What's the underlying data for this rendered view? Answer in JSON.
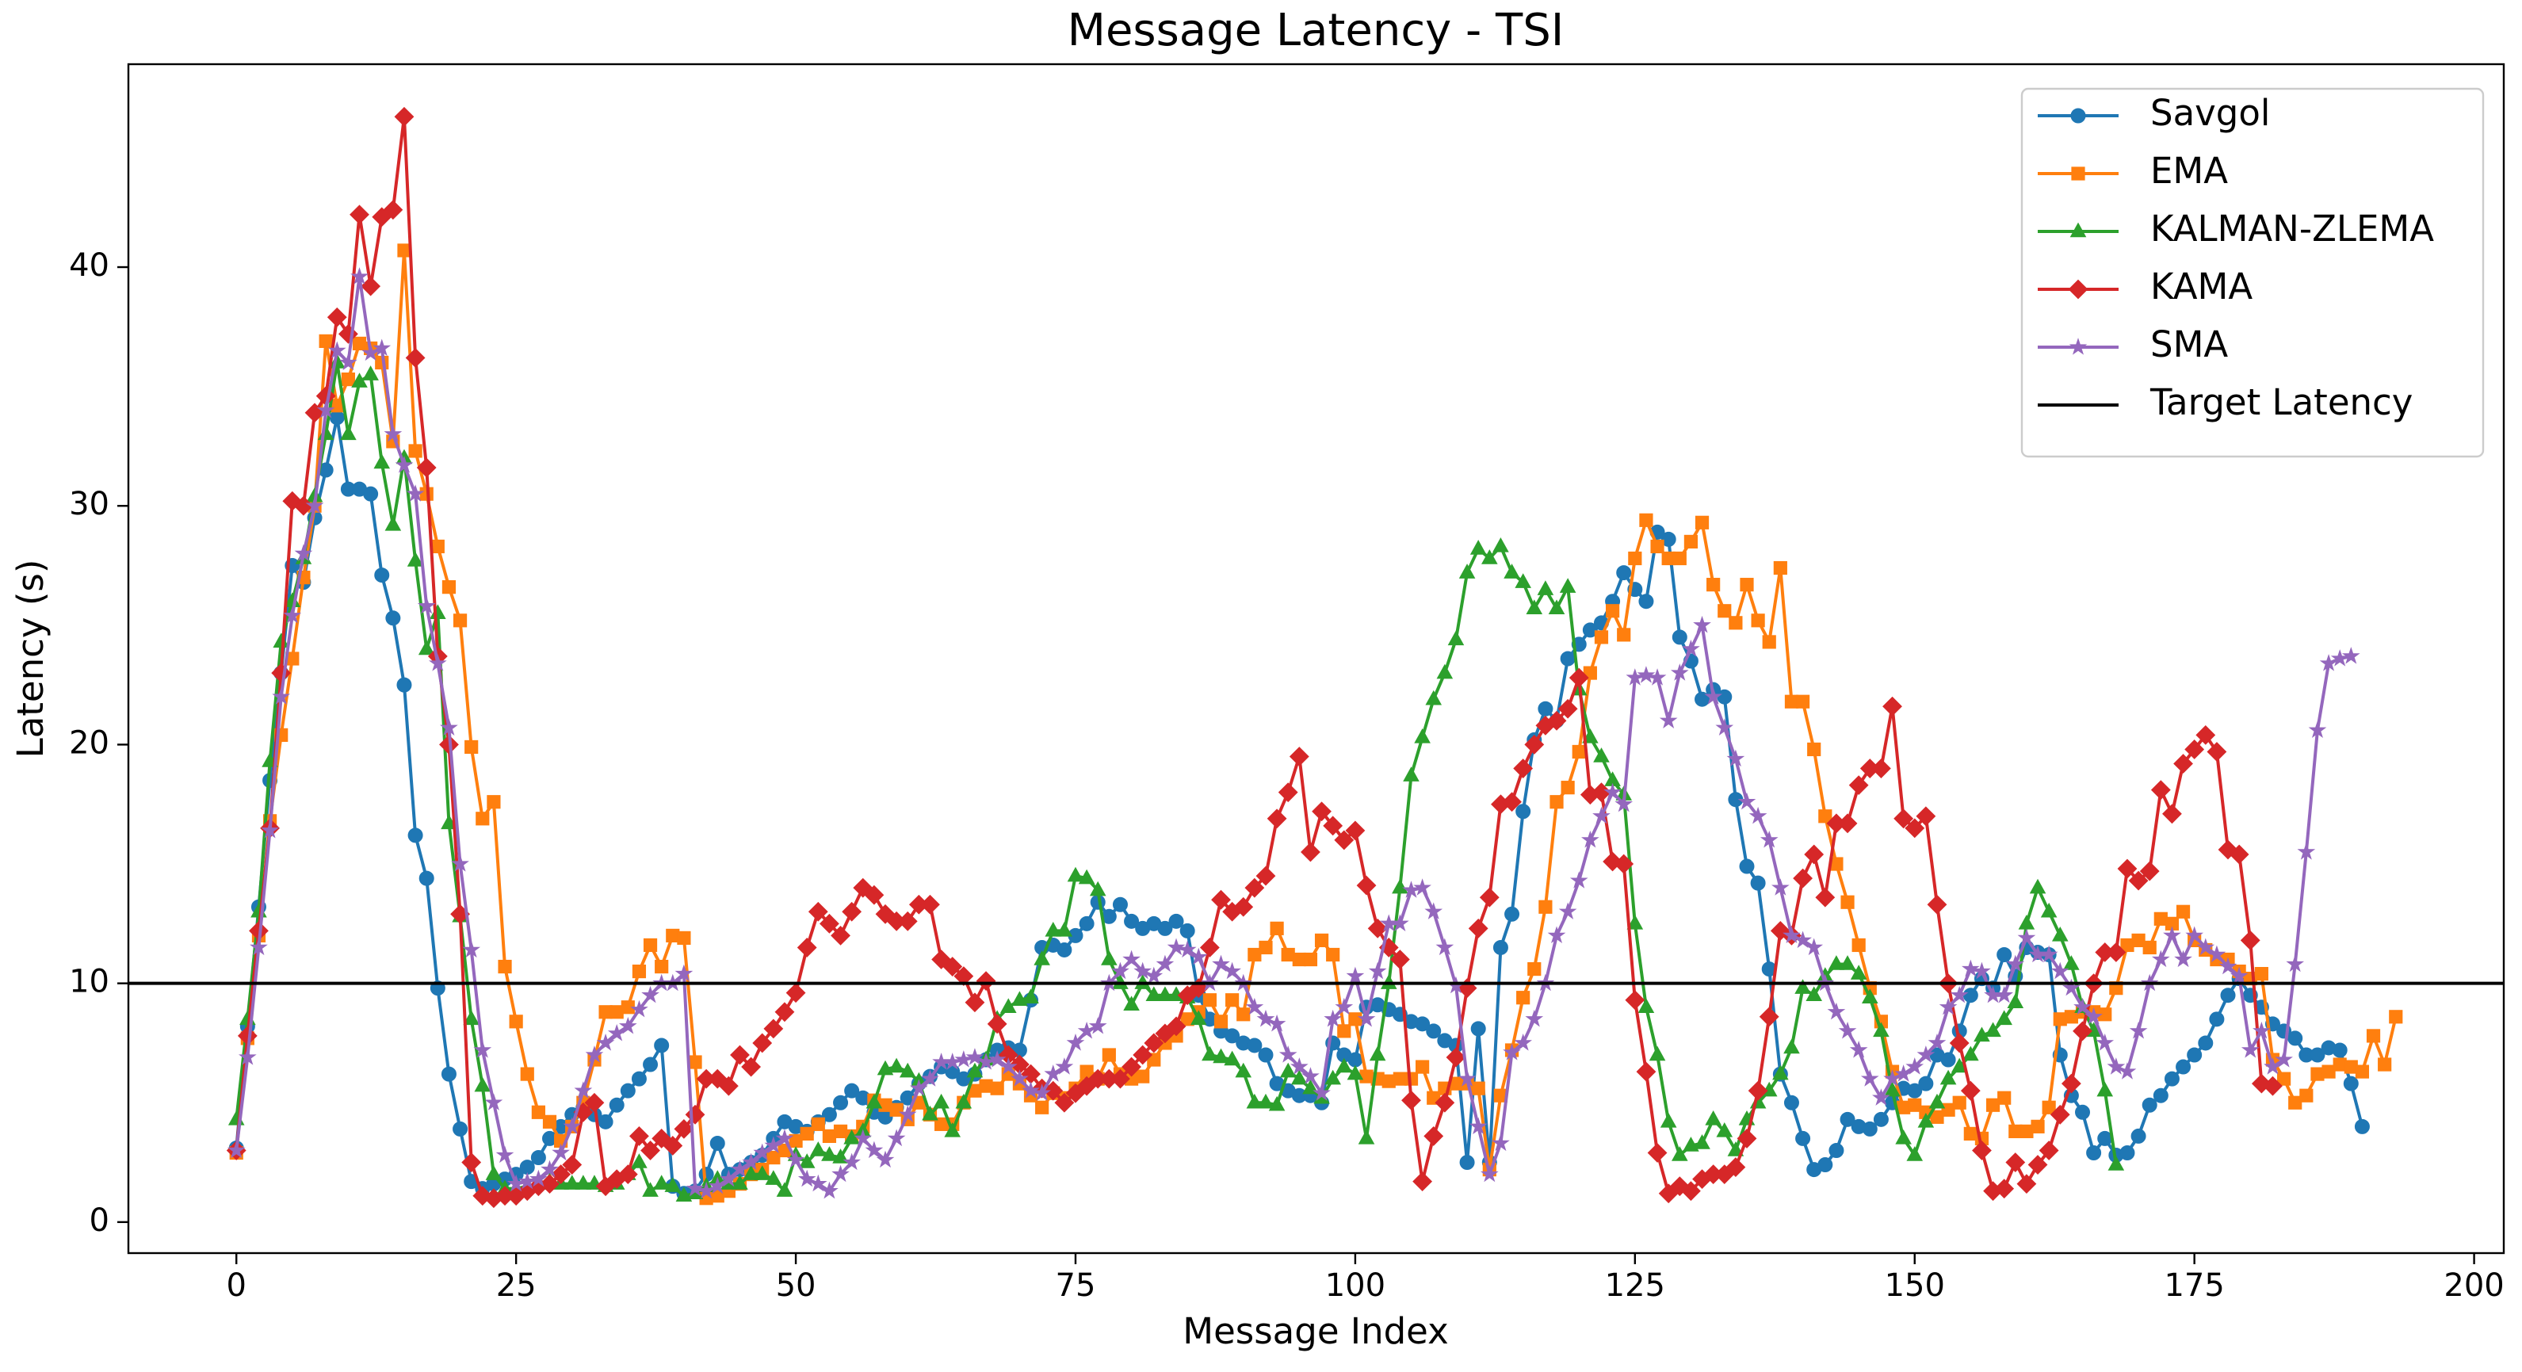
{
  "chart_data": {
    "type": "line",
    "title": "Message Latency - TSI",
    "xlabel": "Message Index",
    "ylabel": "Latency (s)",
    "xlim": [
      -9.65,
      202.65
    ],
    "ylim": [
      -1.3,
      48.5
    ],
    "xticks": [
      0,
      25,
      50,
      75,
      100,
      125,
      150,
      175,
      200
    ],
    "yticks": [
      0,
      10,
      20,
      30,
      40
    ],
    "legend": "upper right",
    "series": [
      {
        "name": "Savgol",
        "color": "#1f77b4",
        "marker": "circle",
        "values": [
          3.1,
          8.2,
          13.2,
          18.5,
          23,
          27.5,
          26.8,
          29.5,
          31.5,
          33.7,
          30.7,
          30.7,
          30.5,
          27.1,
          25.3,
          22.5,
          16.2,
          14.4,
          9.8,
          6.2,
          3.9,
          1.7,
          1.4,
          1.6,
          1.8,
          2.0,
          2.3,
          2.7,
          3.5,
          4.0,
          4.5,
          4.8,
          4.5,
          4.2,
          4.9,
          5.5,
          6.0,
          6.6,
          7.4,
          1.5,
          1.2,
          1.3,
          2.0,
          3.3,
          2.0,
          2.2,
          2.5,
          2.8,
          3.5,
          4.2,
          4.0,
          3.8,
          4.2,
          4.5,
          5.0,
          5.5,
          5.2,
          4.6,
          4.4,
          4.8,
          5.2,
          5.8,
          6.1,
          6.5,
          6.3,
          6.0,
          6.2,
          6.8,
          7.2,
          7.3,
          7.2,
          9.3,
          11.5,
          11.6,
          11.4,
          12.0,
          12.5,
          13.4,
          12.8,
          13.3,
          12.6,
          12.3,
          12.5,
          12.3,
          12.6,
          12.2,
          9.5,
          8.5,
          8.0,
          7.8,
          7.5,
          7.4,
          7.0,
          5.8,
          5.5,
          5.3,
          5.3,
          5.0,
          7.5,
          7.0,
          6.8,
          9.0,
          9.1,
          8.9,
          8.7,
          8.4,
          8.3,
          8.0,
          7.6,
          7.4,
          2.5,
          8.1,
          2.5,
          11.5,
          12.9,
          17.2,
          20.2,
          21.5,
          21.0,
          23.6,
          24.2,
          24.8,
          25.1,
          26.0,
          27.2,
          26.5,
          26.0,
          28.9,
          28.6,
          24.5,
          23.5,
          21.9,
          22.3,
          22.0,
          17.7,
          14.9,
          14.2,
          10.6,
          6.2,
          5.0,
          3.5,
          2.2,
          2.4,
          3.0,
          4.3,
          4.0,
          3.9,
          4.3,
          5.0,
          5.6,
          5.5,
          5.8,
          7.0,
          6.8,
          8.0,
          9.5,
          10.2,
          9.8,
          11.2,
          10.3,
          11.5,
          11.3,
          11.2,
          7.0,
          5.3,
          4.6,
          2.9,
          3.5,
          2.8,
          2.9,
          3.6,
          4.9,
          5.3,
          6.0,
          6.5,
          7.0,
          7.5,
          8.5,
          9.5,
          10.2,
          9.5,
          9.0,
          8.3,
          8.0,
          7.7,
          7.0,
          7.0,
          7.3,
          7.2,
          5.8,
          4.0
        ]
      },
      {
        "name": "EMA",
        "color": "#ff7f0e",
        "marker": "square",
        "values": [
          2.9,
          7.7,
          12.0,
          16.8,
          20.4,
          23.6,
          27,
          30.0,
          36.9,
          34.2,
          35.3,
          36.8,
          36.6,
          36.0,
          32.7,
          40.7,
          32.3,
          30.5,
          28.3,
          26.6,
          25.2,
          19.9,
          16.9,
          17.6,
          10.7,
          8.4,
          6.2,
          4.6,
          4.2,
          3.4,
          4.0,
          5.0,
          6.8,
          8.8,
          8.8,
          9.0,
          10.5,
          11.6,
          10.7,
          12.0,
          11.9,
          6.7,
          1.0,
          1.1,
          1.3,
          1.6,
          2.0,
          2.2,
          2.7,
          3.0,
          3.4,
          3.7,
          4.1,
          3.6,
          3.8,
          3.6,
          4.0,
          5.1,
          4.9,
          4.7,
          4.3,
          5.0,
          4.5,
          4.1,
          4.1,
          5.0,
          5.5,
          5.7,
          5.6,
          6.2,
          5.8,
          5.3,
          4.8,
          5.4,
          5.2,
          5.6,
          6.3,
          6.0,
          7.0,
          6.2,
          6.0,
          6.1,
          6.8,
          7.5,
          7.8,
          8.5,
          8.8,
          9.3,
          8.4,
          9.3,
          8.7,
          11.2,
          11.5,
          12.3,
          11.2,
          11.0,
          11.0,
          11.8,
          11.2,
          8.0,
          8.5,
          6.1,
          6.0,
          5.9,
          6.0,
          6.0,
          6.5,
          5.2,
          5.6,
          5.8,
          5.8,
          5.6,
          2.2,
          5.3,
          7.2,
          9.4,
          10.6,
          13.2,
          17.6,
          18.2,
          19.7,
          23.0,
          24.5,
          25.6,
          24.6,
          27.8,
          29.4,
          28.3,
          27.8,
          27.8,
          28.5,
          29.3,
          26.7,
          25.6,
          25.1,
          26.7,
          25.2,
          24.3,
          27.4,
          21.8,
          21.8,
          19.8,
          17.0,
          15.0,
          13.4,
          11.6,
          9.8,
          8.4,
          6.3,
          4.8,
          4.9,
          4.6,
          4.4,
          4.7,
          5.0,
          3.7,
          3.5,
          4.9,
          5.2,
          3.8,
          3.8,
          4.0,
          4.8,
          8.5,
          8.6,
          8.8,
          8.8,
          8.7,
          9.8,
          11.6,
          11.8,
          11.5,
          12.7,
          12.5,
          13.0,
          11.8,
          11.4,
          11.0,
          11.0,
          10.5,
          10.2,
          10.4,
          6.8,
          6.0,
          5.0,
          5.3,
          6.2,
          6.3,
          6.6,
          6.5,
          6.3,
          7.8,
          6.6,
          8.6
        ]
      },
      {
        "name": "KALMAN-ZLEMA",
        "color": "#2ca02c",
        "marker": "triangle",
        "values": [
          4.3,
          8.5,
          13.0,
          19.3,
          24.3,
          26.0,
          27.8,
          30.4,
          33.0,
          36.0,
          33.0,
          35.2,
          35.5,
          31.8,
          29.2,
          32.0,
          27.7,
          24.0,
          25.5,
          16.7,
          12.8,
          8.5,
          5.7,
          2.0,
          1.4,
          1.4,
          1.5,
          1.6,
          1.7,
          1.6,
          1.6,
          1.6,
          1.6,
          1.5,
          1.6,
          2.0,
          2.5,
          1.3,
          1.6,
          1.5,
          1.1,
          1.2,
          1.5,
          1.8,
          1.6,
          1.6,
          2.0,
          2.0,
          1.8,
          1.3,
          2.8,
          2.5,
          3.0,
          2.8,
          2.7,
          3.5,
          3.8,
          5.0,
          6.4,
          6.5,
          6.3,
          5.9,
          4.5,
          5.0,
          3.8,
          5.0,
          6.3,
          6.8,
          8.5,
          9.0,
          9.3,
          9.4,
          11.0,
          12.2,
          12.2,
          14.5,
          14.4,
          13.9,
          11.0,
          10.0,
          9.1,
          10.0,
          9.5,
          9.5,
          9.5,
          9.4,
          8.5,
          7.0,
          6.9,
          6.8,
          6.3,
          5.0,
          5.0,
          4.9,
          6.3,
          6.0,
          5.6,
          5.2,
          6.0,
          6.5,
          6.2,
          3.5,
          7.0,
          10.0,
          14.0,
          18.7,
          20.3,
          21.9,
          23.0,
          24.4,
          27.2,
          28.2,
          27.8,
          28.3,
          27.2,
          26.8,
          25.7,
          26.5,
          25.7,
          26.6,
          22.3,
          20.3,
          19.5,
          18.5,
          17.9,
          12.5,
          9.0,
          7.0,
          4.2,
          2.8,
          3.2,
          3.3,
          4.3,
          3.8,
          3.0,
          4.3,
          5.0,
          5.5,
          6.2,
          7.3,
          9.8,
          9.5,
          10.3,
          10.8,
          10.8,
          10.4,
          9.4,
          8.0,
          5.5,
          3.5,
          2.8,
          4.2,
          5.0,
          6.0,
          6.5,
          7.0,
          7.8,
          8.0,
          8.5,
          9.2,
          12.5,
          14.0,
          13.0,
          12.0,
          10.8,
          9.0,
          8.0,
          5.5,
          2.4
        ]
      },
      {
        "name": "KAMA",
        "color": "#d62728",
        "marker": "diamond",
        "values": [
          3.0,
          7.8,
          12.2,
          16.5,
          23.0,
          30.2,
          30.0,
          33.9,
          34.6,
          37.9,
          37.2,
          42.2,
          39.2,
          42.1,
          42.4,
          46.3,
          36.2,
          31.6,
          23.7,
          20.0,
          12.9,
          2.5,
          1.1,
          1.0,
          1.1,
          1.1,
          1.3,
          1.5,
          1.6,
          2.0,
          2.4,
          4.6,
          5.0,
          1.5,
          1.8,
          2.0,
          3.6,
          3.0,
          3.5,
          3.2,
          3.9,
          4.5,
          6.0,
          6.0,
          5.7,
          7.0,
          6.5,
          7.5,
          8.1,
          8.8,
          9.6,
          11.5,
          13.0,
          12.5,
          12.0,
          13.0,
          14.0,
          13.7,
          12.9,
          12.6,
          12.6,
          13.3,
          13.3,
          11.0,
          10.7,
          10.3,
          9.2,
          10.1,
          8.3,
          7.0,
          6.6,
          6.2,
          5.6,
          5.5,
          5.0,
          5.4,
          5.7,
          6.0,
          6.0,
          6.0,
          6.5,
          7.0,
          7.5,
          7.9,
          8.2,
          9.5,
          9.8,
          11.5,
          13.5,
          13.0,
          13.2,
          14.0,
          14.5,
          16.9,
          18.0,
          19.5,
          15.5,
          17.2,
          16.6,
          16.0,
          16.4,
          14.1,
          12.3,
          11.5,
          11.0,
          5.1,
          1.7,
          3.6,
          5.0,
          6.9,
          9.8,
          12.3,
          13.6,
          17.5,
          17.6,
          19.0,
          20.0,
          20.8,
          21.0,
          21.5,
          22.8,
          17.9,
          18.0,
          15.1,
          15.0,
          9.3,
          6.3,
          2.9,
          1.2,
          1.5,
          1.3,
          1.8,
          2.0,
          2.0,
          2.3,
          3.5,
          5.5,
          8.6,
          12.2,
          12.0,
          14.4,
          15.4,
          13.6,
          16.7,
          16.7,
          18.3,
          19.0,
          19.0,
          21.6,
          16.9,
          16.5,
          17.0,
          13.3,
          10.0,
          7.5,
          5.5,
          3.0,
          1.3,
          1.4,
          2.5,
          1.6,
          2.4,
          3.0,
          4.5,
          5.8,
          8.0,
          10.0,
          11.3,
          11.3,
          14.8,
          14.3,
          14.7,
          18.1,
          17.1,
          19.2,
          19.8,
          20.4,
          19.7,
          15.6,
          15.4,
          11.8,
          5.8,
          5.7
        ]
      },
      {
        "name": "SMA",
        "color": "#9467bd",
        "marker": "star",
        "values": [
          3.0,
          6.9,
          11.5,
          16.4,
          22.0,
          25.4,
          28.0,
          30.0,
          34.0,
          36.5,
          36.0,
          39.6,
          36.4,
          36.6,
          33.0,
          31.7,
          30.5,
          25.8,
          23.4,
          20.7,
          15.0,
          11.4,
          7.2,
          5.0,
          2.8,
          1.6,
          1.7,
          1.8,
          2.2,
          2.9,
          4.0,
          5.5,
          7.0,
          7.5,
          7.9,
          8.2,
          8.9,
          9.5,
          10.0,
          10.0,
          10.4,
          1.4,
          1.3,
          1.5,
          1.8,
          2.2,
          2.5,
          2.9,
          3.2,
          3.5,
          2.6,
          1.8,
          1.6,
          1.3,
          2.0,
          2.5,
          3.5,
          3.0,
          2.6,
          3.5,
          4.5,
          5.6,
          6.0,
          6.7,
          6.7,
          6.8,
          6.9,
          6.7,
          6.8,
          6.5,
          6.0,
          5.5,
          5.4,
          6.2,
          6.5,
          7.5,
          8.0,
          8.2,
          10.0,
          10.5,
          11.0,
          10.5,
          10.3,
          10.8,
          11.5,
          11.4,
          11.1,
          10.0,
          10.8,
          10.5,
          10.0,
          9.0,
          8.5,
          8.3,
          7.0,
          6.5,
          6.1,
          5.4,
          8.5,
          9.0,
          10.3,
          8.5,
          10.5,
          12.5,
          12.5,
          13.9,
          14.0,
          13.0,
          11.5,
          9.9,
          6.0,
          4.0,
          2.0,
          3.3,
          7.1,
          7.5,
          8.5,
          10.0,
          12.0,
          13.0,
          14.3,
          16.0,
          17.0,
          18.0,
          17.5,
          22.8,
          22.9,
          22.8,
          21.0,
          23.0,
          24.0,
          25.0,
          22.0,
          20.7,
          19.4,
          17.6,
          17.0,
          16.0,
          14.0,
          12.0,
          11.8,
          11.5,
          10.0,
          8.8,
          8.0,
          7.2,
          6.0,
          5.2,
          6.0,
          6.2,
          6.5,
          7.0,
          7.5,
          9.0,
          9.5,
          10.6,
          10.5,
          9.5,
          9.5,
          10.8,
          11.9,
          11.2,
          11.2,
          10.5,
          9.8,
          9.0,
          8.6,
          7.5,
          6.5,
          6.3,
          8.0,
          10.0,
          11.0,
          12.0,
          11.0,
          12.0,
          11.5,
          11.2,
          10.7,
          10.3,
          7.2,
          8.0,
          6.5,
          6.8,
          10.8,
          15.5,
          20.6,
          23.4,
          23.6,
          23.7
        ]
      }
    ],
    "reference_line": {
      "name": "Target Latency",
      "value": 10,
      "color": "#000000"
    }
  }
}
